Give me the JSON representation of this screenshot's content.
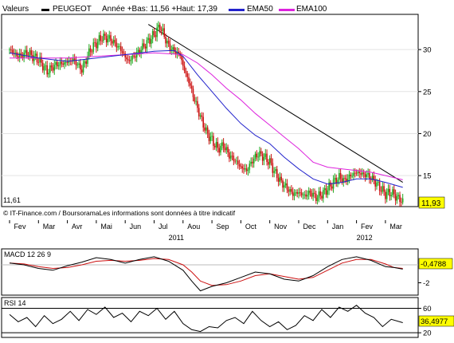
{
  "header": {
    "valeurs_label": "Valeurs",
    "stock_name": "PEUGEOT",
    "range_text": "Année +Bas: 11,56 +Haut: 17,39",
    "ema50_label": "EMA50",
    "ema100_label": "EMA100"
  },
  "colors": {
    "price_up": "#1faa1f",
    "price_down": "#cc1111",
    "ema50": "#2222cc",
    "ema100": "#dd22dd",
    "trendline": "#000000",
    "macd_line": "#000000",
    "macd_signal": "#cc1111",
    "rsi_line": "#000000"
  },
  "footer": {
    "source_text": "© IT-Finance.com / BoursoramaLes informations sont données à titre indicatif",
    "min_label": "11,61",
    "last_value": "11,93"
  },
  "chart_data": [
    {
      "type": "candlestick",
      "name": "price",
      "x_unit": "month",
      "x_months": [
        "Fev",
        "Mar",
        "Avr",
        "Mai",
        "Jun",
        "Jul",
        "Aou",
        "Sep",
        "Oct",
        "Nov",
        "Dec",
        "Jan",
        "Fev",
        "Mar"
      ],
      "year_labels": [
        {
          "label": "2011",
          "at_month": 5.5
        },
        {
          "label": "2012",
          "at_month": 12.0
        }
      ],
      "yticks": [
        15,
        20,
        25,
        30
      ],
      "ylim": [
        11.5,
        34.0
      ],
      "close_points": [
        [
          0.0,
          30.0
        ],
        [
          0.3,
          29.2
        ],
        [
          0.6,
          29.6
        ],
        [
          1.0,
          28.8
        ],
        [
          1.3,
          27.4
        ],
        [
          1.6,
          28.2
        ],
        [
          1.9,
          28.4
        ],
        [
          2.2,
          28.8
        ],
        [
          2.5,
          27.6
        ],
        [
          2.8,
          30.0
        ],
        [
          3.2,
          31.5
        ],
        [
          3.5,
          31.2
        ],
        [
          3.8,
          30.2
        ],
        [
          4.1,
          28.6
        ],
        [
          4.4,
          29.5
        ],
        [
          4.8,
          31.0
        ],
        [
          5.0,
          31.8
        ],
        [
          5.2,
          32.8
        ],
        [
          5.5,
          30.4
        ],
        [
          5.7,
          29.8
        ],
        [
          5.9,
          29.4
        ],
        [
          6.0,
          28.0
        ],
        [
          6.2,
          26.2
        ],
        [
          6.4,
          24.0
        ],
        [
          6.6,
          22.0
        ],
        [
          6.8,
          20.2
        ],
        [
          7.0,
          19.2
        ],
        [
          7.2,
          18.2
        ],
        [
          7.4,
          18.6
        ],
        [
          7.6,
          17.4
        ],
        [
          7.8,
          16.8
        ],
        [
          8.0,
          16.0
        ],
        [
          8.2,
          15.6
        ],
        [
          8.4,
          16.8
        ],
        [
          8.6,
          17.6
        ],
        [
          8.8,
          17.2
        ],
        [
          9.0,
          16.6
        ],
        [
          9.2,
          15.2
        ],
        [
          9.4,
          14.2
        ],
        [
          9.6,
          13.5
        ],
        [
          9.8,
          12.8
        ],
        [
          10.0,
          13.0
        ],
        [
          10.2,
          12.6
        ],
        [
          10.4,
          13.0
        ],
        [
          10.6,
          12.4
        ],
        [
          10.8,
          12.8
        ],
        [
          11.0,
          13.4
        ],
        [
          11.2,
          14.2
        ],
        [
          11.4,
          14.8
        ],
        [
          11.6,
          14.4
        ],
        [
          11.8,
          15.0
        ],
        [
          12.0,
          15.4
        ],
        [
          12.2,
          15.2
        ],
        [
          12.4,
          15.0
        ],
        [
          12.6,
          14.4
        ],
        [
          12.8,
          13.6
        ],
        [
          13.0,
          12.8
        ],
        [
          13.2,
          13.0
        ],
        [
          13.4,
          12.4
        ],
        [
          13.6,
          11.93
        ]
      ],
      "ema50": [
        [
          0.0,
          29.6
        ],
        [
          1.0,
          29.0
        ],
        [
          2.0,
          28.6
        ],
        [
          3.0,
          29.0
        ],
        [
          4.0,
          29.4
        ],
        [
          5.0,
          29.8
        ],
        [
          5.7,
          29.9
        ],
        [
          6.0,
          29.2
        ],
        [
          6.5,
          27.0
        ],
        [
          7.0,
          25.0
        ],
        [
          7.5,
          23.0
        ],
        [
          8.0,
          21.2
        ],
        [
          8.5,
          19.8
        ],
        [
          9.0,
          18.8
        ],
        [
          9.5,
          17.2
        ],
        [
          10.0,
          15.8
        ],
        [
          10.5,
          14.6
        ],
        [
          11.0,
          14.0
        ],
        [
          11.5,
          14.2
        ],
        [
          12.0,
          14.6
        ],
        [
          12.5,
          14.6
        ],
        [
          13.0,
          14.2
        ],
        [
          13.6,
          13.6
        ]
      ],
      "ema100": [
        [
          0.0,
          29.0
        ],
        [
          1.0,
          29.0
        ],
        [
          2.0,
          29.0
        ],
        [
          3.0,
          29.2
        ],
        [
          4.0,
          29.4
        ],
        [
          5.0,
          29.6
        ],
        [
          6.0,
          29.4
        ],
        [
          6.5,
          28.4
        ],
        [
          7.0,
          27.0
        ],
        [
          7.5,
          25.4
        ],
        [
          8.0,
          24.0
        ],
        [
          8.5,
          22.4
        ],
        [
          9.0,
          21.0
        ],
        [
          9.5,
          19.6
        ],
        [
          10.0,
          18.2
        ],
        [
          10.5,
          16.6
        ],
        [
          11.0,
          16.0
        ],
        [
          11.5,
          15.8
        ],
        [
          12.0,
          15.6
        ],
        [
          12.5,
          15.4
        ],
        [
          13.0,
          15.0
        ],
        [
          13.6,
          14.5
        ]
      ],
      "trendline": [
        [
          4.8,
          33.0
        ],
        [
          13.6,
          14.2
        ]
      ],
      "min_value": 11.61,
      "last_value": 11.93
    },
    {
      "type": "line",
      "name": "MACD 12 26 9",
      "title": "MACD 12 26 9",
      "yticks": [
        -2
      ],
      "ylim": [
        -3.2,
        1.6
      ],
      "last_value": -0.4788,
      "macd": [
        [
          0.0,
          0.2
        ],
        [
          0.5,
          0.0
        ],
        [
          1.0,
          -0.4
        ],
        [
          1.5,
          -0.6
        ],
        [
          2.0,
          -0.1
        ],
        [
          2.5,
          0.3
        ],
        [
          3.0,
          0.8
        ],
        [
          3.5,
          0.6
        ],
        [
          4.0,
          0.2
        ],
        [
          4.5,
          0.6
        ],
        [
          5.0,
          0.9
        ],
        [
          5.5,
          0.4
        ],
        [
          6.0,
          -0.6
        ],
        [
          6.3,
          -1.8
        ],
        [
          6.6,
          -2.9
        ],
        [
          7.0,
          -2.4
        ],
        [
          7.5,
          -2.0
        ],
        [
          8.0,
          -1.4
        ],
        [
          8.5,
          -0.8
        ],
        [
          9.0,
          -1.0
        ],
        [
          9.5,
          -1.6
        ],
        [
          10.0,
          -1.8
        ],
        [
          10.5,
          -1.2
        ],
        [
          11.0,
          -0.2
        ],
        [
          11.5,
          0.6
        ],
        [
          12.0,
          0.9
        ],
        [
          12.5,
          0.5
        ],
        [
          13.0,
          -0.2
        ],
        [
          13.3,
          -0.3
        ],
        [
          13.6,
          -0.4788
        ]
      ],
      "signal": [
        [
          0.0,
          0.2
        ],
        [
          0.5,
          0.1
        ],
        [
          1.0,
          -0.2
        ],
        [
          1.5,
          -0.4
        ],
        [
          2.0,
          -0.3
        ],
        [
          2.5,
          0.0
        ],
        [
          3.0,
          0.4
        ],
        [
          3.5,
          0.5
        ],
        [
          4.0,
          0.4
        ],
        [
          4.5,
          0.5
        ],
        [
          5.0,
          0.7
        ],
        [
          5.5,
          0.6
        ],
        [
          6.0,
          0.0
        ],
        [
          6.3,
          -0.8
        ],
        [
          6.6,
          -1.8
        ],
        [
          7.0,
          -2.3
        ],
        [
          7.5,
          -2.2
        ],
        [
          8.0,
          -1.8
        ],
        [
          8.5,
          -1.2
        ],
        [
          9.0,
          -1.0
        ],
        [
          9.5,
          -1.3
        ],
        [
          10.0,
          -1.6
        ],
        [
          10.5,
          -1.4
        ],
        [
          11.0,
          -0.6
        ],
        [
          11.5,
          0.2
        ],
        [
          12.0,
          0.6
        ],
        [
          12.5,
          0.6
        ],
        [
          13.0,
          0.1
        ],
        [
          13.3,
          -0.3
        ],
        [
          13.6,
          -0.4
        ]
      ]
    },
    {
      "type": "line",
      "name": "RSI 14",
      "title": "RSI 14",
      "yticks": [
        20,
        60
      ],
      "ylim": [
        15,
        75
      ],
      "last_value": 36.4977,
      "rsi": [
        [
          0.0,
          50
        ],
        [
          0.3,
          38
        ],
        [
          0.6,
          45
        ],
        [
          0.9,
          30
        ],
        [
          1.2,
          48
        ],
        [
          1.5,
          35
        ],
        [
          1.8,
          42
        ],
        [
          2.1,
          55
        ],
        [
          2.4,
          40
        ],
        [
          2.7,
          58
        ],
        [
          3.0,
          50
        ],
        [
          3.3,
          62
        ],
        [
          3.6,
          45
        ],
        [
          3.9,
          52
        ],
        [
          4.2,
          38
        ],
        [
          4.5,
          55
        ],
        [
          4.8,
          48
        ],
        [
          5.1,
          60
        ],
        [
          5.4,
          42
        ],
        [
          5.7,
          55
        ],
        [
          6.0,
          35
        ],
        [
          6.3,
          25
        ],
        [
          6.6,
          22
        ],
        [
          6.9,
          30
        ],
        [
          7.2,
          28
        ],
        [
          7.5,
          40
        ],
        [
          7.8,
          45
        ],
        [
          8.1,
          35
        ],
        [
          8.4,
          55
        ],
        [
          8.7,
          40
        ],
        [
          9.0,
          30
        ],
        [
          9.3,
          38
        ],
        [
          9.6,
          25
        ],
        [
          9.9,
          32
        ],
        [
          10.2,
          48
        ],
        [
          10.5,
          40
        ],
        [
          10.8,
          58
        ],
        [
          11.1,
          45
        ],
        [
          11.4,
          62
        ],
        [
          11.7,
          55
        ],
        [
          12.0,
          65
        ],
        [
          12.3,
          52
        ],
        [
          12.6,
          45
        ],
        [
          12.9,
          30
        ],
        [
          13.2,
          42
        ],
        [
          13.6,
          36.4977
        ]
      ]
    }
  ]
}
